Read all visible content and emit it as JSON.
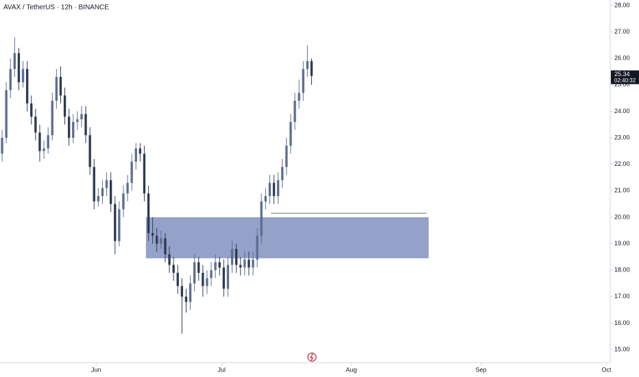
{
  "chart_data": {
    "type": "candlestick",
    "title": "AVAX / TetherUS · 12h · BINANCE",
    "xlim": [
      0,
      146
    ],
    "xticks": [
      {
        "value": 23,
        "label": "Jun"
      },
      {
        "value": 53,
        "label": "Jul"
      },
      {
        "value": 84,
        "label": "Aug"
      },
      {
        "value": 115,
        "label": "Sep"
      },
      {
        "value": 145,
        "label": "Oct"
      }
    ],
    "ylim": [
      15.0,
      28.0
    ],
    "yticks": [
      {
        "value": 15,
        "label": "15.00"
      },
      {
        "value": 16,
        "label": "16.00"
      },
      {
        "value": 17,
        "label": "17.00"
      },
      {
        "value": 18,
        "label": "18.00"
      },
      {
        "value": 19,
        "label": "19.00"
      },
      {
        "value": 20,
        "label": "20.00"
      },
      {
        "value": 21,
        "label": "21.00"
      },
      {
        "value": 22,
        "label": "22.00"
      },
      {
        "value": 23,
        "label": "23.00"
      },
      {
        "value": 24,
        "label": "24.00"
      },
      {
        "value": 25,
        "label": "25.00"
      },
      {
        "value": 26,
        "label": "26.00"
      },
      {
        "value": 27,
        "label": "27.00"
      },
      {
        "value": 28,
        "label": "28.00"
      }
    ],
    "up_color": "#5d6e91",
    "down_color": "#2e3a52",
    "open": [
      22.4,
      23.0,
      24.8,
      25.6,
      26.2,
      25.1,
      25.6,
      24.3,
      23.8,
      23.2,
      22.5,
      22.6,
      23.1,
      24.4,
      25.3,
      24.6,
      23.8,
      23.0,
      23.6,
      23.7,
      23.9,
      23.1,
      21.9,
      20.6,
      20.8,
      21.1,
      21.4,
      20.5,
      19.1,
      20.3,
      20.9,
      21.3,
      22.1,
      22.6,
      22.4,
      20.9,
      19.4,
      19.3,
      19.0,
      19.2,
      18.6,
      18.2,
      17.9,
      17.4,
      17.0,
      16.8,
      17.5,
      18.3,
      17.9,
      17.4,
      17.7,
      18.0,
      18.3,
      18.1,
      17.3,
      18.2,
      18.8,
      18.2,
      18.1,
      18.4,
      18.1,
      18.4,
      19.3,
      20.6,
      20.8,
      21.3,
      20.8,
      21.4,
      21.9,
      22.7,
      23.6,
      24.4,
      24.7,
      25.6,
      25.9
    ],
    "high": [
      23.3,
      25.1,
      26.0,
      26.8,
      26.4,
      25.9,
      25.9,
      24.6,
      24.1,
      23.5,
      22.9,
      23.4,
      24.7,
      25.6,
      25.7,
      24.9,
      24.1,
      23.9,
      24.0,
      24.2,
      24.2,
      23.4,
      22.2,
      21.1,
      21.4,
      21.7,
      21.7,
      20.8,
      20.6,
      21.2,
      21.6,
      22.4,
      22.8,
      22.8,
      22.7,
      21.2,
      20.0,
      19.6,
      19.5,
      19.4,
      18.9,
      18.5,
      18.2,
      17.7,
      17.3,
      17.8,
      18.6,
      18.5,
      18.2,
      18.0,
      18.3,
      18.6,
      18.5,
      18.4,
      18.5,
      19.1,
      19.0,
      18.5,
      18.7,
      18.7,
      18.7,
      19.6,
      20.9,
      21.1,
      21.6,
      21.6,
      21.7,
      22.2,
      23.0,
      23.9,
      24.7,
      25.2,
      25.9,
      26.5,
      26.0
    ],
    "low": [
      22.1,
      22.8,
      24.5,
      25.3,
      24.8,
      24.9,
      24.0,
      23.5,
      22.9,
      22.1,
      22.2,
      22.4,
      22.9,
      24.1,
      24.3,
      23.5,
      22.7,
      22.8,
      23.3,
      23.4,
      22.8,
      21.6,
      20.3,
      20.4,
      20.5,
      20.8,
      20.2,
      18.6,
      18.9,
      20.0,
      20.6,
      21.0,
      21.8,
      22.1,
      20.6,
      19.1,
      19.0,
      18.7,
      18.8,
      18.3,
      17.9,
      17.6,
      17.1,
      15.6,
      16.4,
      16.5,
      17.2,
      17.6,
      17.0,
      17.1,
      17.4,
      17.7,
      17.8,
      17.0,
      17.0,
      17.9,
      17.9,
      17.8,
      17.8,
      17.8,
      17.8,
      18.1,
      19.0,
      20.3,
      20.5,
      20.5,
      20.5,
      21.1,
      21.6,
      22.4,
      23.3,
      24.1,
      24.4,
      25.3,
      25.0
    ],
    "close": [
      23.0,
      24.8,
      25.6,
      26.2,
      25.1,
      25.6,
      24.3,
      23.8,
      23.2,
      22.5,
      22.6,
      23.1,
      24.4,
      25.3,
      24.6,
      23.8,
      23.0,
      23.6,
      23.7,
      23.9,
      23.1,
      21.9,
      20.6,
      20.8,
      21.1,
      21.4,
      20.5,
      19.1,
      20.3,
      20.9,
      21.3,
      22.1,
      22.6,
      22.4,
      20.9,
      19.4,
      19.3,
      19.0,
      19.2,
      18.6,
      18.2,
      17.9,
      17.4,
      17.0,
      16.8,
      17.5,
      18.3,
      17.9,
      17.4,
      17.7,
      18.0,
      18.3,
      18.1,
      17.3,
      18.2,
      18.8,
      18.2,
      18.1,
      18.4,
      18.1,
      18.4,
      19.3,
      20.6,
      20.8,
      21.3,
      20.8,
      21.4,
      21.9,
      22.7,
      23.6,
      24.4,
      24.7,
      25.6,
      25.9,
      25.34
    ],
    "last_price": 25.34,
    "countdown": "02:40:32",
    "zone": {
      "top": 20.0,
      "bottom": 18.45,
      "x_start": 34.9,
      "x_end": 102.5,
      "color": "#8e9cc6"
    },
    "level": {
      "value": 20.15,
      "x_start": 64.8,
      "x_end": 102.0,
      "color": "#4c7a55"
    }
  }
}
